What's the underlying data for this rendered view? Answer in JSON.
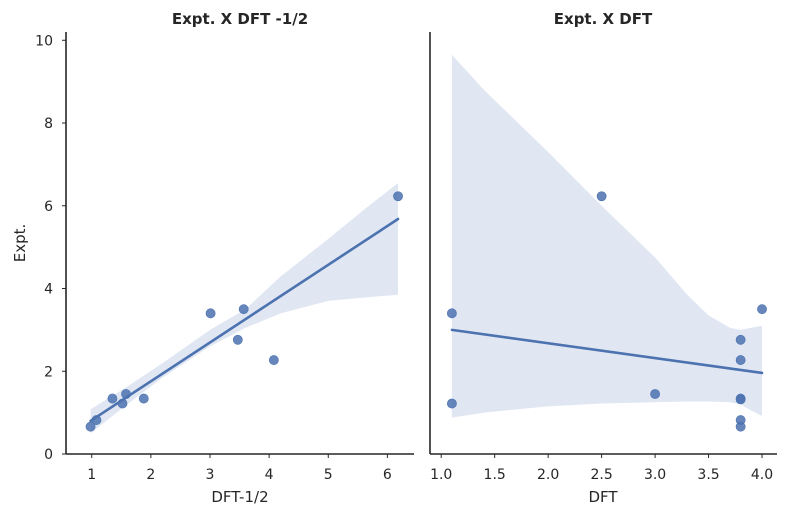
{
  "chart_data": [
    {
      "type": "scatter",
      "title": "Expt. X DFT -1/2",
      "xlabel": "DFT-1/2",
      "ylabel": "Expt.",
      "xlim": [
        0.7,
        6.45
      ],
      "ylim": [
        0,
        10.2
      ],
      "xticks": [
        1,
        2,
        3,
        4,
        5,
        6
      ],
      "yticks": [
        0,
        2,
        4,
        6,
        8,
        10
      ],
      "points": [
        {
          "x": 0.98,
          "y": 0.66
        },
        {
          "x": 1.08,
          "y": 0.82
        },
        {
          "x": 1.35,
          "y": 1.34
        },
        {
          "x": 1.52,
          "y": 1.22
        },
        {
          "x": 1.58,
          "y": 1.45
        },
        {
          "x": 1.88,
          "y": 1.34
        },
        {
          "x": 3.01,
          "y": 3.4
        },
        {
          "x": 3.47,
          "y": 2.76
        },
        {
          "x": 3.57,
          "y": 3.5
        },
        {
          "x": 4.08,
          "y": 2.27
        },
        {
          "x": 6.18,
          "y": 6.23
        }
      ],
      "fit_line": {
        "x": [
          0.98,
          6.18
        ],
        "y": [
          0.8,
          5.68
        ]
      },
      "ci_band": {
        "x": [
          0.98,
          1.6,
          2.2,
          3.0,
          3.6,
          4.2,
          5.0,
          5.6,
          6.18
        ],
        "lower": [
          0.5,
          1.2,
          1.85,
          2.6,
          3.05,
          3.4,
          3.7,
          3.78,
          3.85
        ],
        "upper": [
          1.08,
          1.63,
          2.2,
          3.0,
          3.5,
          4.3,
          5.2,
          5.9,
          6.55
        ]
      },
      "colors": {
        "points": "#4c72b0",
        "line": "#4c72b0",
        "band": "#dbe3f1"
      }
    },
    {
      "type": "scatter",
      "title": "Expt. X DFT",
      "xlabel": "DFT",
      "ylabel": "",
      "xlim": [
        0.97,
        4.14
      ],
      "ylim": [
        0,
        10.2
      ],
      "xticks": [
        1.0,
        1.5,
        2.0,
        2.5,
        3.0,
        3.5,
        4.0
      ],
      "xtick_labels": [
        "1.0",
        "1.5",
        "2.0",
        "2.5",
        "3.0",
        "3.5",
        "4.0"
      ],
      "yticks": [
        0,
        2,
        4,
        6,
        8,
        10
      ],
      "points": [
        {
          "x": 1.1,
          "y": 3.4
        },
        {
          "x": 1.1,
          "y": 1.22
        },
        {
          "x": 2.5,
          "y": 6.23
        },
        {
          "x": 3.0,
          "y": 1.45
        },
        {
          "x": 3.8,
          "y": 2.76
        },
        {
          "x": 3.8,
          "y": 2.27
        },
        {
          "x": 3.8,
          "y": 1.34
        },
        {
          "x": 3.8,
          "y": 1.32
        },
        {
          "x": 3.8,
          "y": 0.82
        },
        {
          "x": 3.8,
          "y": 0.66
        },
        {
          "x": 4.0,
          "y": 3.5
        }
      ],
      "fit_line": {
        "x": [
          1.1,
          4.0
        ],
        "y": [
          3.0,
          1.96
        ]
      },
      "ci_band": {
        "x": [
          1.1,
          1.4,
          2.0,
          2.5,
          3.0,
          3.3,
          3.5,
          3.7,
          3.8,
          3.9,
          4.0
        ],
        "lower": [
          0.88,
          1.0,
          1.15,
          1.22,
          1.25,
          1.27,
          1.27,
          1.25,
          1.2,
          1.05,
          0.92
        ],
        "upper": [
          9.65,
          8.8,
          7.3,
          6.0,
          4.75,
          3.85,
          3.35,
          3.05,
          3.0,
          3.05,
          3.1
        ]
      },
      "colors": {
        "points": "#4c72b0",
        "line": "#4c72b0",
        "band": "#dbe3f1"
      }
    }
  ]
}
